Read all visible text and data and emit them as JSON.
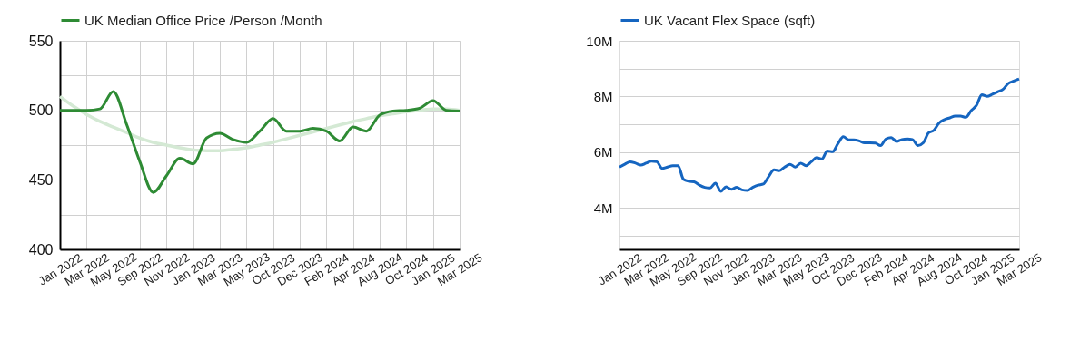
{
  "chart_data": [
    {
      "type": "line",
      "categories": [
        "Jan 2022",
        null,
        "Mar 2022",
        null,
        "May 2022",
        null,
        "Sep 2022",
        null,
        "Nov 2022",
        null,
        "Jan 2023",
        null,
        "Mar 2023",
        null,
        "May 2023",
        null,
        "Oct 2023",
        null,
        "Dec 2023",
        null,
        "Feb 2024",
        null,
        "Apr 2024",
        null,
        "Aug 2024",
        null,
        "Oct 2024",
        null,
        "Jan 2025",
        null,
        "Mar 2025"
      ],
      "series": [
        {
          "name": "UK Median Office Price /Person /Month",
          "color": "#2e8b34",
          "values": [
            500,
            500,
            500,
            501,
            513.5,
            490,
            463,
            441,
            453,
            465.5,
            461.5,
            480,
            483.5,
            479,
            477,
            485,
            494,
            485,
            485,
            487,
            485,
            478,
            488,
            485,
            496.5,
            499.5,
            500,
            501.5,
            507,
            500,
            499.5
          ]
        },
        {
          "type": "line",
          "color": "#d4e9d4",
          "values": [
            510,
            503,
            497,
            492,
            488,
            484,
            480,
            477,
            475,
            473,
            471.5,
            471,
            471,
            472,
            473,
            475,
            477,
            479.5,
            482,
            484.5,
            487,
            489.5,
            492,
            494,
            496,
            497.5,
            499,
            500,
            501,
            501,
            500
          ]
        }
      ],
      "ylim": [
        400,
        550
      ],
      "yticks": [
        400,
        {
          "value": 425,
          "label": null
        },
        450,
        {
          "value": 475,
          "label": null
        },
        500,
        {
          "value": 525,
          "label": null
        },
        550
      ],
      "grid": true,
      "legend": "top left"
    },
    {
      "type": "line",
      "categories": [
        "Jan 2022",
        null,
        null,
        null,
        null,
        "Mar 2022",
        null,
        null,
        null,
        null,
        "May 2022",
        null,
        null,
        null,
        null,
        "Sep 2022",
        null,
        null,
        null,
        null,
        "Nov 2022",
        null,
        null,
        null,
        null,
        "Jan 2023",
        null,
        null,
        null,
        null,
        "Mar 2023",
        null,
        null,
        null,
        null,
        "May 2023",
        null,
        null,
        null,
        null,
        "Oct 2023",
        null,
        null,
        null,
        null,
        "Dec 2023",
        null,
        null,
        null,
        null,
        "Feb 2024",
        null,
        null,
        null,
        null,
        "Apr 2024",
        null,
        null,
        null,
        null,
        "Aug 2024",
        null,
        null,
        null,
        null,
        "Oct 2024",
        null,
        null,
        null,
        null,
        "Jan 2025",
        null,
        null,
        null,
        null,
        "Mar 2025"
      ],
      "series": [
        {
          "name": "UK Vacant Flex Space (sqft)",
          "color": "#1565c0",
          "values": [
            5460000,
            5560000,
            5650000,
            5600000,
            5530000,
            5600000,
            5670000,
            5650000,
            5410000,
            5460000,
            5510000,
            5510000,
            5020000,
            4950000,
            4930000,
            4810000,
            4730000,
            4710000,
            4880000,
            4590000,
            4750000,
            4660000,
            4730000,
            4640000,
            4620000,
            4730000,
            4810000,
            4850000,
            5120000,
            5360000,
            5330000,
            5460000,
            5560000,
            5460000,
            5600000,
            5510000,
            5650000,
            5800000,
            5750000,
            6040000,
            6010000,
            6300000,
            6550000,
            6440000,
            6440000,
            6400000,
            6330000,
            6330000,
            6320000,
            6230000,
            6470000,
            6520000,
            6380000,
            6450000,
            6470000,
            6450000,
            6230000,
            6330000,
            6690000,
            6780000,
            7050000,
            7170000,
            7230000,
            7290000,
            7290000,
            7250000,
            7490000,
            7680000,
            8060000,
            8000000,
            8080000,
            8170000,
            8260000,
            8470000,
            8550000,
            8630000
          ]
        }
      ],
      "ylim": [
        2500000,
        10000000
      ],
      "yticks": [
        {
          "value": 3000000,
          "label": null
        },
        {
          "value": 4000000,
          "label": "4M"
        },
        {
          "value": 5000000,
          "label": null
        },
        {
          "value": 6000000,
          "label": "6M"
        },
        {
          "value": 7000000,
          "label": null
        },
        {
          "value": 8000000,
          "label": "8M"
        },
        {
          "value": 9000000,
          "label": null
        },
        {
          "value": 10000000,
          "label": "10M"
        }
      ],
      "grid": "y",
      "legend": "top left"
    }
  ]
}
